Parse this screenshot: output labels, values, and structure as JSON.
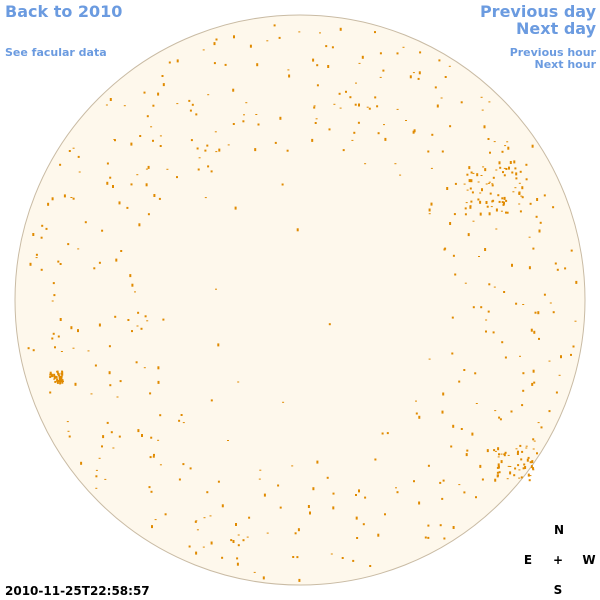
{
  "nav": {
    "back": "Back to 2010",
    "facular": "See facular data",
    "previous_day": "Previous day",
    "next_day": "Next day",
    "previous_hour": "Previous hour",
    "next_hour": "Next hour"
  },
  "timestamp": "2010-11-25T22:58:57",
  "compass": {
    "north": "N",
    "east": "E",
    "center": "+",
    "west": "W",
    "south": "S"
  }
}
